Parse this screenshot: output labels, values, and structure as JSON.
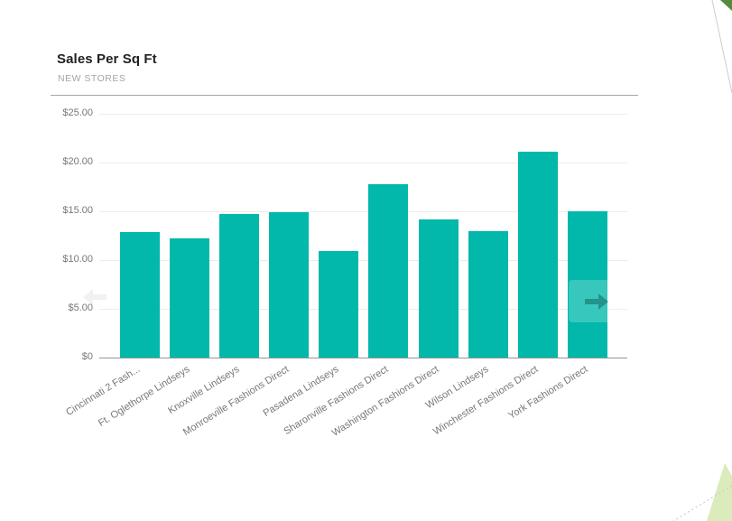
{
  "visual": {
    "title": "Sales Per Sq Ft",
    "subtitle": "NEW STORES"
  },
  "chart_data": {
    "type": "bar",
    "title": "Sales Per Sq Ft",
    "subtitle": "NEW STORES",
    "categories": [
      "Cincinnati 2 Fash...",
      "Ft. Oglethorpe Lindseys",
      "Knoxville Lindseys",
      "Monroeville Fashions Direct",
      "Pasadena Lindseys",
      "Sharonville Fashions Direct",
      "Washington Fashions Direct",
      "Wilson Lindseys",
      "Winchester Fashions Direct",
      "York Fashions Direct"
    ],
    "values": [
      12.9,
      12.2,
      14.7,
      14.9,
      10.9,
      17.8,
      14.2,
      13.0,
      21.1,
      15.0
    ],
    "series_name": "Sales Per Sq Ft",
    "series_color": "#01B8AA",
    "xlabel": "",
    "ylabel": "",
    "ylim": [
      0,
      25
    ],
    "y_ticks": [
      {
        "label": "$25.00",
        "value": 25
      },
      {
        "label": "$20.00",
        "value": 20
      },
      {
        "label": "$15.00",
        "value": 15
      },
      {
        "label": "$10.00",
        "value": 10
      },
      {
        "label": "$5.00",
        "value": 5
      },
      {
        "label": "$0",
        "value": 0
      }
    ],
    "grid": "horizontal",
    "legend_position": "none",
    "x_label_rotation_deg": -32
  },
  "nav": {
    "left": {
      "direction": "left",
      "enabled": false
    },
    "right": {
      "direction": "right",
      "enabled": true
    }
  },
  "colors": {
    "bar": "#01B8AA",
    "title_text": "#212121",
    "subtitle_text": "#a6a6a6",
    "axis_label": "#777777",
    "gridline": "#ebebeb",
    "axis_line": "#949494",
    "divider": "#a6a6a6",
    "nav_arrow_enabled": "rgba(7,70,66,0.40)",
    "nav_arrow_disabled": "#f1f1f1",
    "decor_dark_green": "#568b3f",
    "decor_light_green": "#dcebbb",
    "decor_line": "#cccccc",
    "decor_dotted_line": "#c4c4c4"
  }
}
